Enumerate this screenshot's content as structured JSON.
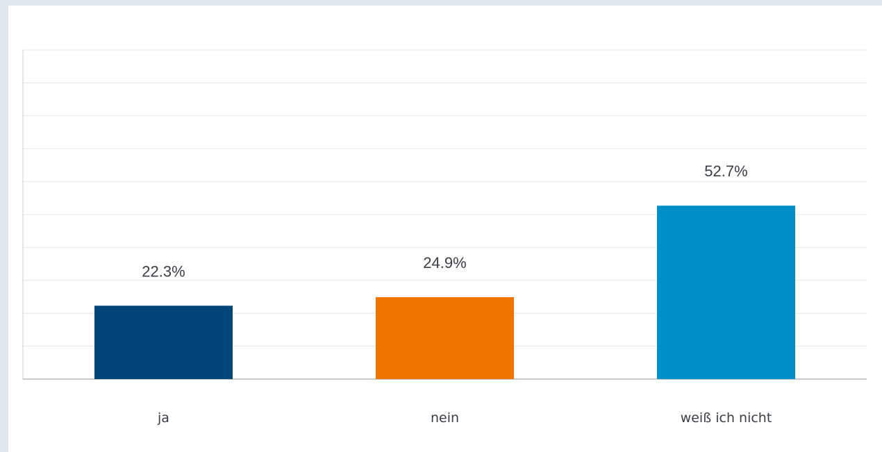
{
  "chart_data": {
    "type": "bar",
    "categories": [
      "ja",
      "nein",
      "weiß ich nicht"
    ],
    "values": [
      22.3,
      24.9,
      52.7
    ],
    "value_labels": [
      "22.3%",
      "24.9%",
      "52.7%"
    ],
    "colors": [
      "#00467a",
      "#ef7500",
      "#008fc8"
    ],
    "title": "",
    "xlabel": "",
    "ylabel": "",
    "ylim": [
      0,
      100
    ],
    "grid": true
  }
}
